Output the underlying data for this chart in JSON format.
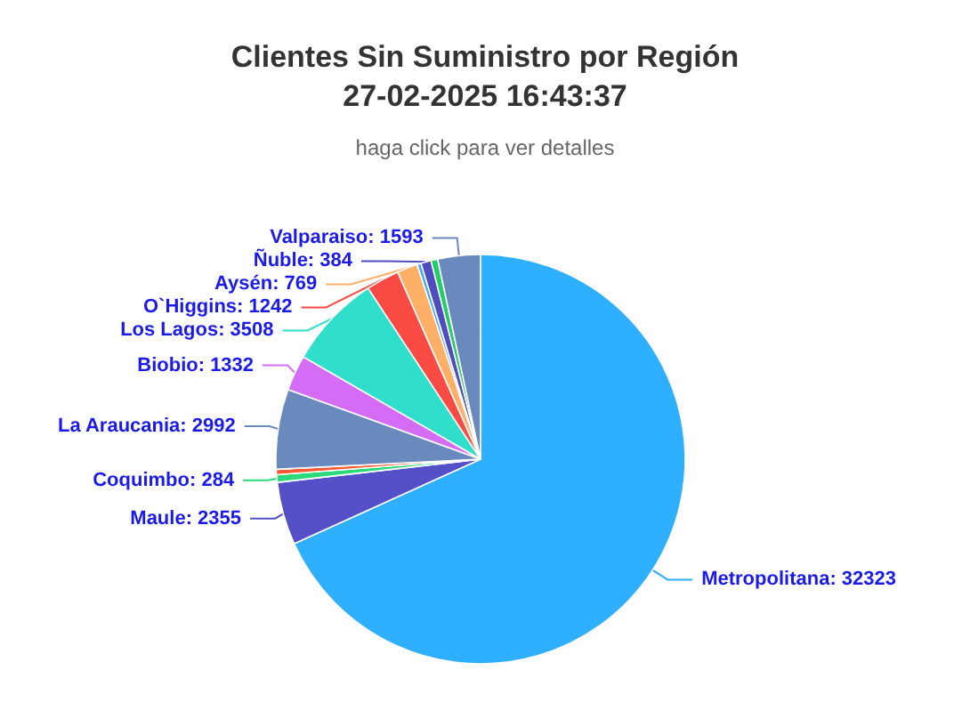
{
  "chart_data": {
    "type": "pie",
    "title": "Clientes Sin Suministro por Región\n27-02-2025 16:43:37",
    "subtitle": "haga click para ver detalles",
    "categories": [
      "Metropolitana",
      "Maule",
      "Coquimbo",
      null,
      "La Araucania",
      "Biobio",
      "Los Lagos",
      "O`Higgins",
      "Aysén",
      null,
      "Ñuble",
      null,
      "Valparaiso"
    ],
    "values": [
      32323,
      2355,
      284,
      200,
      2992,
      1332,
      3508,
      1242,
      769,
      150,
      384,
      250,
      1593
    ],
    "value_labels": [
      "32323",
      "2355",
      "284",
      null,
      "2992",
      "1332",
      "3508",
      "1242",
      "769",
      null,
      "384",
      null,
      "1593"
    ],
    "colors": [
      "#2eafff",
      "#5550c8",
      "#2bd97a",
      "#ff5a36",
      "#6a89bc",
      "#d56cf5",
      "#2fdfcb",
      "#fa4a44",
      "#ffaf66",
      "#3fa8ff",
      "#4f4cc0",
      "#22cc66",
      "#6a89bc"
    ],
    "legend": false
  }
}
